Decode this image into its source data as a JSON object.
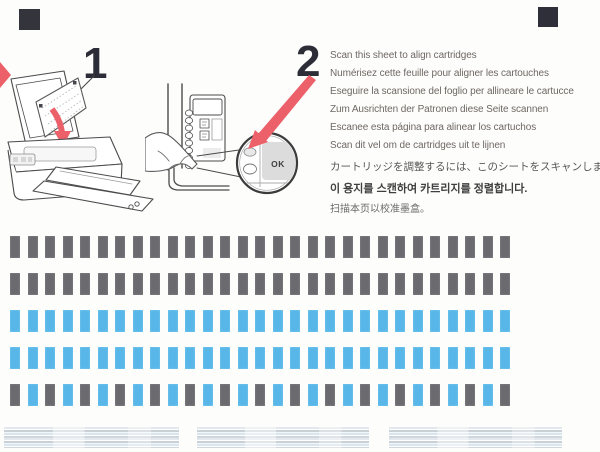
{
  "steps": {
    "step1": {
      "number": "1"
    },
    "step2": {
      "number": "2",
      "ok_label": "OK",
      "instructions": [
        {
          "lang": "en",
          "text": "Scan this sheet to align cartridges"
        },
        {
          "lang": "fr",
          "text": "Numérisez cette feuille pour aligner les cartouches"
        },
        {
          "lang": "it",
          "text": "Eseguire la scansione del foglio per allineare le cartucce"
        },
        {
          "lang": "de",
          "text": "Zum Ausrichten der Patronen diese Seite scannen"
        },
        {
          "lang": "es",
          "text": "Escanee esta página para alinear los cartuchos"
        },
        {
          "lang": "nl",
          "text": "Scan dit vel om de cartridges uit te lijnen"
        },
        {
          "lang": "ja",
          "text": "カートリッジを調整するには、このシートをスキャンします。"
        },
        {
          "lang": "ko",
          "text": "이 용지를 스캔하여 카트리지를 정렬합니다."
        },
        {
          "lang": "zh",
          "text": "扫描本页以校准墨盒。"
        }
      ]
    }
  },
  "alignment_pattern": {
    "bar_rows": [
      {
        "pattern": "gray",
        "count": 29
      },
      {
        "pattern": "gray",
        "count": 29
      },
      {
        "pattern": "blue",
        "count": 29
      },
      {
        "pattern": "blue",
        "count": 29
      },
      {
        "pattern": "alternating-gray-blue",
        "count": 29
      }
    ],
    "calibration_strip_count": 3
  },
  "colors": {
    "mark_black": "#34343c",
    "digit_navy": "#2d2d38",
    "accent_red": "#ec6069",
    "bar_gray": "#6a6a6f",
    "bar_blue": "#58b7e8",
    "text_gray": "#6e6862",
    "line_art": "#4b4b4b"
  }
}
